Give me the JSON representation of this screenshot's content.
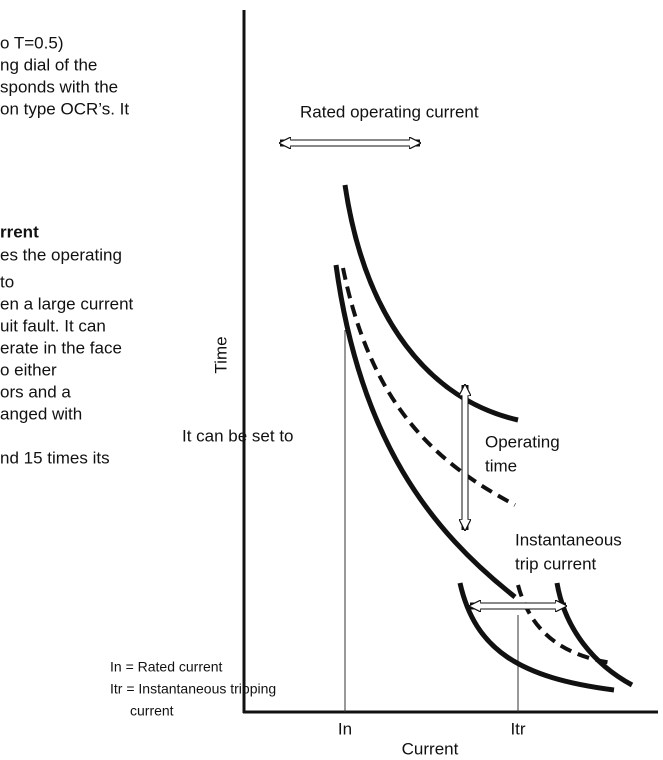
{
  "body_text": {
    "paragraph_1": [
      "o T=0.5)",
      "ng dial of the",
      "sponds with the",
      "on type OCR’s.  It"
    ],
    "heading_2": "rrent",
    "paragraph_2": [
      "es the operating",
      "to",
      "en a large current",
      "uit fault.  It can",
      "erate in the face",
      "o either",
      "ors and a",
      "anged with",
      "It can be set to",
      "nd 15 times its"
    ]
  },
  "legend": [
    "In = Rated current",
    "Itr = Instantaneous tripping",
    "current"
  ],
  "diagram": {
    "y_axis_label": "Time",
    "x_axis_label": "Current",
    "x_marks": [
      "In",
      "Itr"
    ],
    "annotations": {
      "rated_operating_current": "Rated operating current",
      "operating_time": [
        "Operating",
        "time"
      ],
      "instantaneous_trip_current": [
        "Instantaneous",
        "trip current"
      ]
    }
  }
}
